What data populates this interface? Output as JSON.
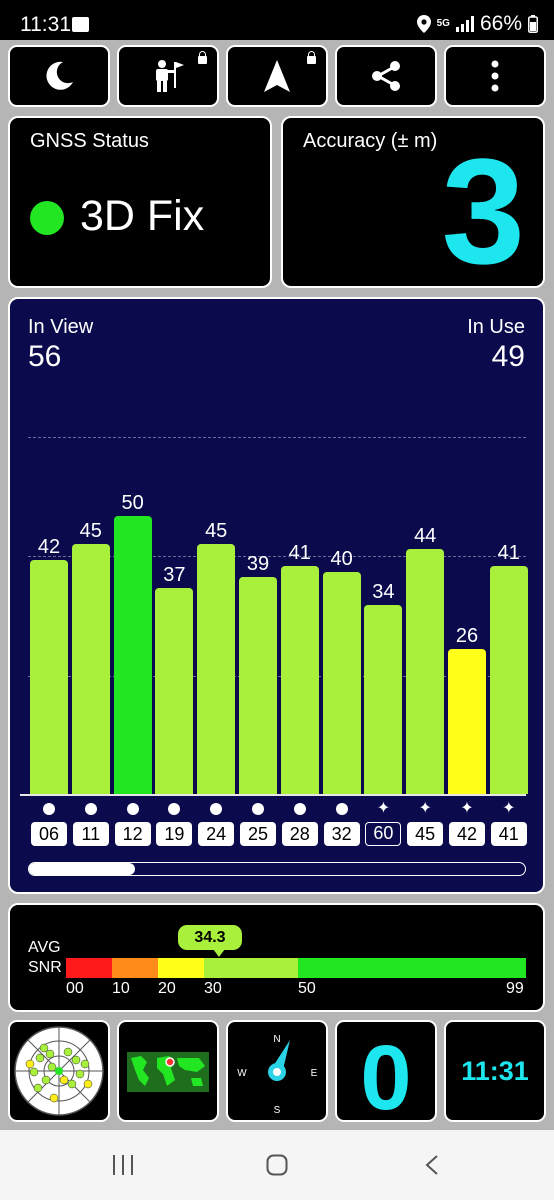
{
  "status_bar": {
    "time": "11:31",
    "network": "5G",
    "battery": "66%"
  },
  "gnss": {
    "title": "GNSS Status",
    "fix": "3D Fix",
    "fix_color": "#22e622"
  },
  "accuracy": {
    "title": "Accuracy (± m)",
    "value": "3"
  },
  "sat_summary": {
    "in_view_label": "In View",
    "in_view": "56",
    "in_use_label": "In Use",
    "in_use": "49"
  },
  "chart_data": {
    "type": "bar",
    "categories": [
      "06",
      "11",
      "12",
      "19",
      "24",
      "25",
      "28",
      "32",
      "60",
      "45",
      "42",
      "41"
    ],
    "values": [
      42,
      45,
      50,
      37,
      45,
      39,
      41,
      40,
      34,
      44,
      26,
      41
    ],
    "marker_types": [
      "dot",
      "dot",
      "dot",
      "dot",
      "dot",
      "dot",
      "dot",
      "dot",
      "star",
      "star",
      "star",
      "star"
    ],
    "in_use": [
      true,
      true,
      true,
      true,
      true,
      true,
      true,
      true,
      false,
      true,
      true,
      true
    ],
    "ylim": [
      0,
      60
    ]
  },
  "avg_snr": {
    "label_line1": "AVG",
    "label_line2": "SNR",
    "value": "34.3",
    "ticks": [
      "00",
      "10",
      "20",
      "30",
      "50",
      "99"
    ],
    "colors": [
      "#ff1a1a",
      "#ff8c1a",
      "#ffff1a",
      "#a8f03c",
      "#22e622"
    ]
  },
  "bottom": {
    "sats_not_used": "0",
    "clock": "11:31"
  },
  "compass": {
    "n": "N",
    "e": "E",
    "s": "S",
    "w": "W"
  },
  "icons": [
    "moon-icon",
    "person-flag-icon",
    "navigation-arrow-icon",
    "share-icon",
    "more-vert-icon",
    "sky-plot-icon",
    "world-map-icon",
    "compass-icon"
  ]
}
